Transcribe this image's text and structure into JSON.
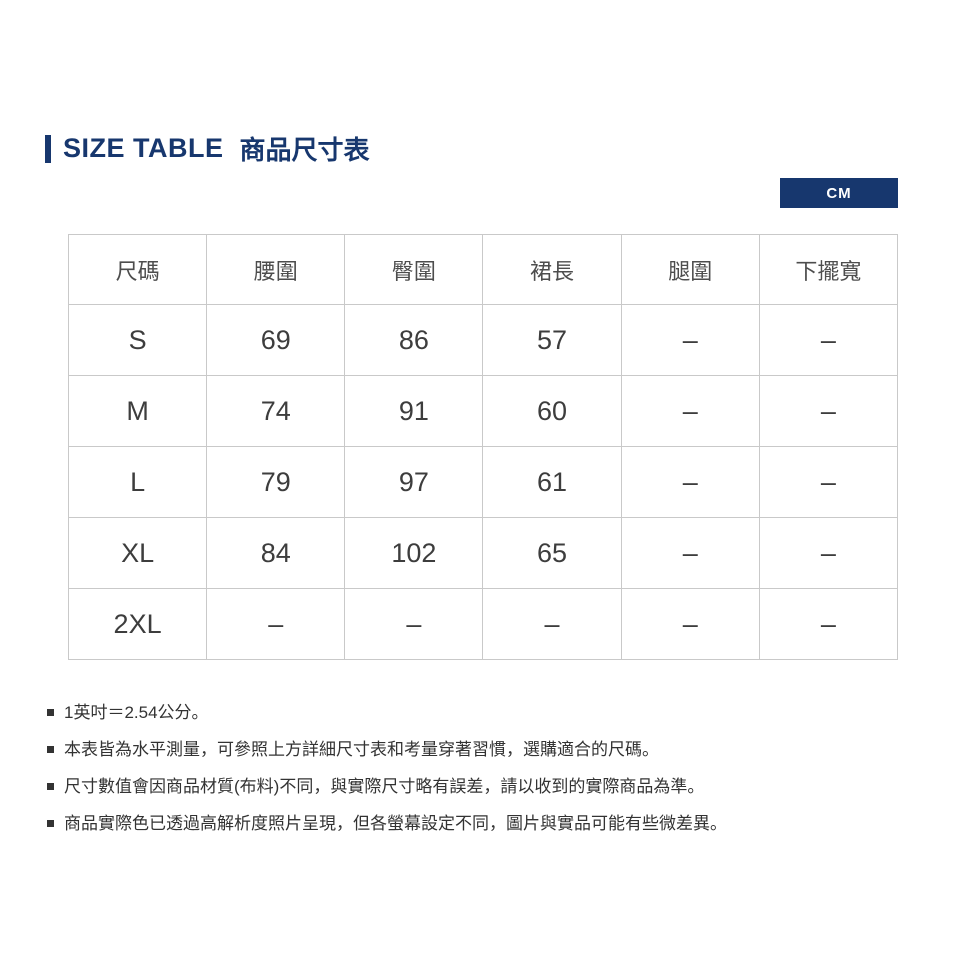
{
  "title": {
    "en": "SIZE TABLE",
    "zh": "商品尺寸表"
  },
  "unit_badge": "CM",
  "table": {
    "headers": [
      "尺碼",
      "腰圍",
      "臀圍",
      "裙長",
      "腿圍",
      "下擺寬"
    ],
    "rows": [
      [
        "S",
        "69",
        "86",
        "57",
        "–",
        "–"
      ],
      [
        "M",
        "74",
        "91",
        "60",
        "–",
        "–"
      ],
      [
        "L",
        "79",
        "97",
        "61",
        "–",
        "–"
      ],
      [
        "XL",
        "84",
        "102",
        "65",
        "–",
        "–"
      ],
      [
        "2XL",
        "–",
        "–",
        "–",
        "–",
        "–"
      ]
    ]
  },
  "notes": [
    "1英吋＝2.54公分。",
    "本表皆為水平測量，可參照上方詳細尺寸表和考量穿著習慣，選購適合的尺碼。",
    "尺寸數值會因商品材質(布料)不同，與實際尺寸略有誤差，請以收到的實際商品為準。",
    "商品實際色已透過高解析度照片呈現，但各螢幕設定不同，圖片與實品可能有些微差異。"
  ],
  "colors": {
    "accent_navy": "#17376e",
    "table_border": "#c9c9c9",
    "body_text": "#333333",
    "cell_text": "#3d3d3d"
  }
}
